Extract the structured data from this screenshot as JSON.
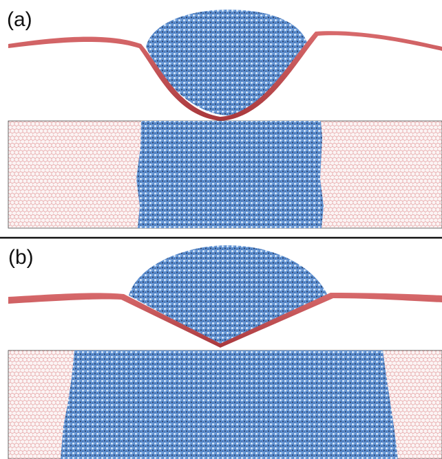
{
  "figure": {
    "panels": [
      {
        "label": "(a)"
      },
      {
        "label": "(b)"
      }
    ],
    "colors": {
      "membrane": "#cf5a5c",
      "membrane_dark": "#a8383c",
      "lattice": "#e08a8c",
      "lattice_bg": "#fbf4f4",
      "droplet": "#5d8fd0",
      "droplet_light": "#d9e8f8",
      "droplet_dark": "#2a3f66",
      "separator": "#111111"
    }
  }
}
